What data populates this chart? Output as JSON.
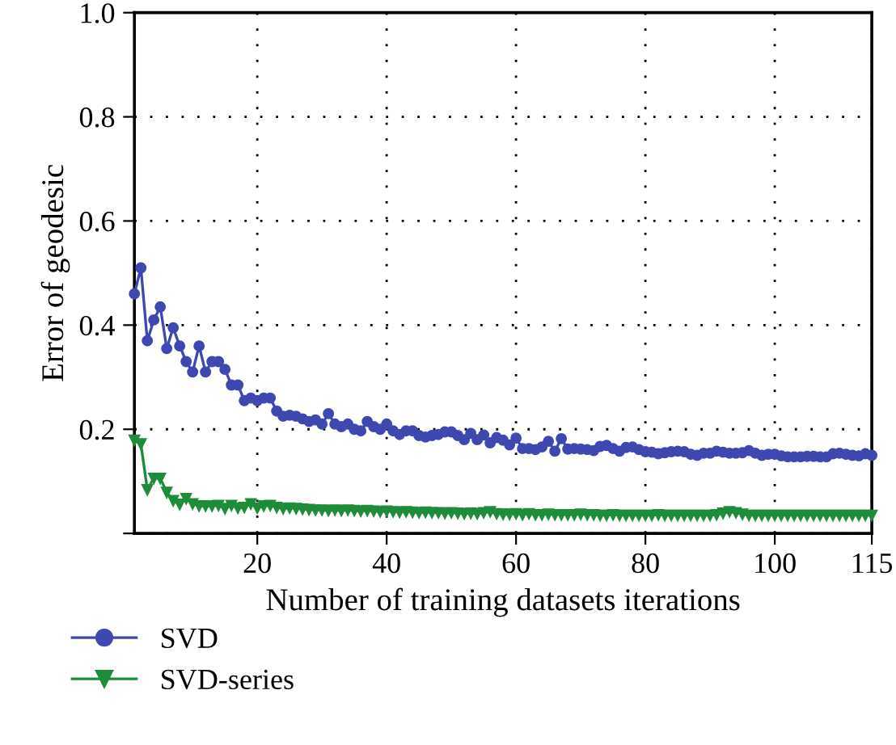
{
  "chart_data": {
    "type": "line",
    "xlabel": "Number of training datasets iterations",
    "ylabel": "Error of geodesic",
    "xlim": [
      1,
      115
    ],
    "xticks": [
      20,
      40,
      60,
      80,
      100,
      115
    ],
    "ylim": [
      0,
      1.0
    ],
    "yticks": [
      {
        "value": 0,
        "label": null
      },
      0.2,
      0.4,
      0.6,
      0.8,
      {
        "value": 1.0,
        "label": "1.0"
      }
    ],
    "grid": true,
    "legend": "bottom left",
    "line_style": "solid",
    "x": [
      1,
      2,
      3,
      4,
      5,
      6,
      7,
      8,
      9,
      10,
      11,
      12,
      13,
      14,
      15,
      16,
      17,
      18,
      19,
      20,
      21,
      22,
      23,
      24,
      25,
      26,
      27,
      28,
      29,
      30,
      31,
      32,
      33,
      34,
      35,
      36,
      37,
      38,
      39,
      40,
      41,
      42,
      43,
      44,
      45,
      46,
      47,
      48,
      49,
      50,
      51,
      52,
      53,
      54,
      55,
      56,
      57,
      58,
      59,
      60,
      61,
      62,
      63,
      64,
      65,
      66,
      67,
      68,
      69,
      70,
      71,
      72,
      73,
      74,
      75,
      76,
      77,
      78,
      79,
      80,
      81,
      82,
      83,
      84,
      85,
      86,
      87,
      88,
      89,
      90,
      91,
      92,
      93,
      94,
      95,
      96,
      97,
      98,
      99,
      100,
      101,
      102,
      103,
      104,
      105,
      106,
      107,
      108,
      109,
      110,
      111,
      112,
      113,
      114,
      115
    ],
    "series": [
      {
        "name": "SVD",
        "color": "#3f48b0",
        "marker": "circle",
        "values": [
          0.46,
          0.51,
          0.37,
          0.41,
          0.435,
          0.355,
          0.395,
          0.36,
          0.33,
          0.31,
          0.36,
          0.31,
          0.33,
          0.33,
          0.315,
          0.285,
          0.285,
          0.255,
          0.26,
          0.255,
          0.26,
          0.26,
          0.235,
          0.225,
          0.227,
          0.225,
          0.22,
          0.215,
          0.218,
          0.21,
          0.23,
          0.21,
          0.205,
          0.21,
          0.2,
          0.197,
          0.215,
          0.205,
          0.2,
          0.21,
          0.197,
          0.19,
          0.197,
          0.197,
          0.188,
          0.185,
          0.188,
          0.19,
          0.195,
          0.195,
          0.188,
          0.18,
          0.192,
          0.18,
          0.189,
          0.174,
          0.184,
          0.179,
          0.17,
          0.183,
          0.163,
          0.163,
          0.161,
          0.166,
          0.177,
          0.158,
          0.182,
          0.162,
          0.163,
          0.162,
          0.161,
          0.159,
          0.167,
          0.169,
          0.163,
          0.158,
          0.165,
          0.166,
          0.161,
          0.157,
          0.156,
          0.153,
          0.155,
          0.157,
          0.158,
          0.157,
          0.152,
          0.15,
          0.154,
          0.154,
          0.158,
          0.156,
          0.154,
          0.154,
          0.155,
          0.159,
          0.154,
          0.15,
          0.152,
          0.152,
          0.149,
          0.147,
          0.147,
          0.147,
          0.148,
          0.148,
          0.147,
          0.147,
          0.153,
          0.154,
          0.152,
          0.15,
          0.149,
          0.153,
          0.15
        ]
      },
      {
        "name": "SVD-series",
        "color": "#1e8c3a",
        "marker": "triangle",
        "values": [
          0.179,
          0.172,
          0.084,
          0.106,
          0.106,
          0.079,
          0.063,
          0.056,
          0.067,
          0.057,
          0.053,
          0.053,
          0.053,
          0.054,
          0.048,
          0.054,
          0.049,
          0.05,
          0.057,
          0.049,
          0.053,
          0.054,
          0.05,
          0.048,
          0.049,
          0.048,
          0.047,
          0.046,
          0.045,
          0.045,
          0.044,
          0.045,
          0.044,
          0.045,
          0.044,
          0.043,
          0.044,
          0.043,
          0.042,
          0.043,
          0.042,
          0.041,
          0.042,
          0.041,
          0.04,
          0.041,
          0.04,
          0.04,
          0.039,
          0.04,
          0.039,
          0.038,
          0.039,
          0.038,
          0.04,
          0.042,
          0.038,
          0.037,
          0.037,
          0.038,
          0.036,
          0.038,
          0.036,
          0.036,
          0.037,
          0.036,
          0.036,
          0.036,
          0.036,
          0.037,
          0.036,
          0.036,
          0.035,
          0.035,
          0.036,
          0.035,
          0.035,
          0.035,
          0.035,
          0.035,
          0.035,
          0.036,
          0.035,
          0.035,
          0.035,
          0.035,
          0.035,
          0.035,
          0.035,
          0.035,
          0.036,
          0.039,
          0.042,
          0.04,
          0.037,
          0.035,
          0.035,
          0.035,
          0.035,
          0.035,
          0.035,
          0.035,
          0.035,
          0.035,
          0.035,
          0.035,
          0.035,
          0.035,
          0.035,
          0.035,
          0.035,
          0.035,
          0.035,
          0.035,
          0.035
        ]
      }
    ]
  }
}
